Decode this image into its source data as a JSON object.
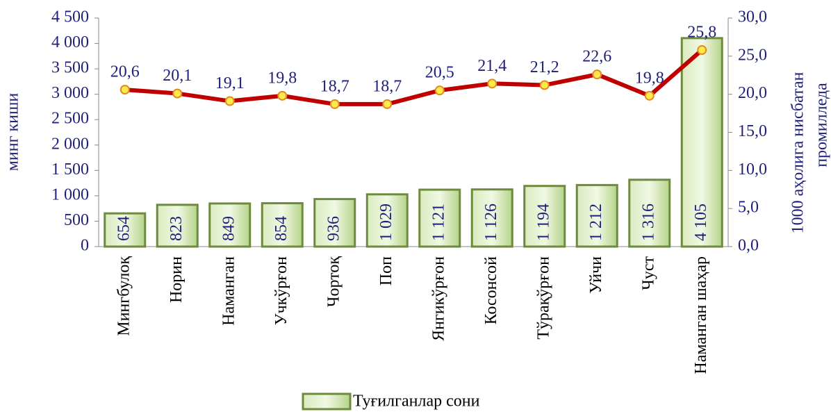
{
  "chart_data": {
    "type": "bar",
    "categories": [
      "Мингбулоқ",
      "Норин",
      "Наманган",
      "Учкўрғон",
      "Чортоқ",
      "Поп",
      "Янгикўрғон",
      "Косонсой",
      "Тўрақўрғон",
      "Уйчи",
      "Чуст",
      "Наманган шаҳар"
    ],
    "series": [
      {
        "name": "Туғилганлар сони",
        "type": "bar",
        "color": "#b5d48a",
        "values": [
          654,
          823,
          849,
          854,
          936,
          1029,
          1121,
          1126,
          1194,
          1212,
          1316,
          4105
        ],
        "value_labels": [
          "654",
          "823",
          "849",
          "854",
          "936",
          "1 029",
          "1 121",
          "1 126",
          "1 194",
          "1 212",
          "1 316",
          "4 105"
        ]
      },
      {
        "type": "line",
        "axis": "y2",
        "color": "#c00000",
        "values": [
          20.6,
          20.1,
          19.1,
          19.8,
          18.7,
          18.7,
          20.5,
          21.4,
          21.2,
          22.6,
          19.8,
          25.8
        ],
        "value_labels": [
          "20,6",
          "20,1",
          "19,1",
          "19,8",
          "18,7",
          "18,7",
          "20,5",
          "21,4",
          "21,2",
          "22,6",
          "19,8",
          "25,8"
        ]
      }
    ],
    "y_label": "минг киши",
    "y2_label": [
      "1000 аҳолига нисбатан",
      "промилледа"
    ],
    "ylim": [
      0,
      4500
    ],
    "yticks": [
      0,
      500,
      {
        "value": 1000,
        "label": "1 000"
      },
      {
        "value": 1500,
        "label": "1 500"
      },
      {
        "value": 2000,
        "label": "2 000"
      },
      {
        "value": 2500,
        "label": "2 500"
      },
      {
        "value": 3000,
        "label": "3 000"
      },
      {
        "value": 3500,
        "label": "3 500"
      },
      {
        "value": 4000,
        "label": "4 000"
      },
      {
        "value": 4500,
        "label": "4 500"
      }
    ],
    "y2lim": [
      0,
      30
    ],
    "y2ticks": [
      {
        "value": 0,
        "label": "0,0"
      },
      {
        "value": 5,
        "label": "5,0"
      },
      {
        "value": 10,
        "label": "10,0"
      },
      {
        "value": 15,
        "label": "15,0"
      },
      {
        "value": 20,
        "label": "20,0"
      },
      {
        "value": 25,
        "label": "25,0"
      },
      {
        "value": 30,
        "label": "30,0"
      }
    ],
    "legend": "bottom"
  }
}
